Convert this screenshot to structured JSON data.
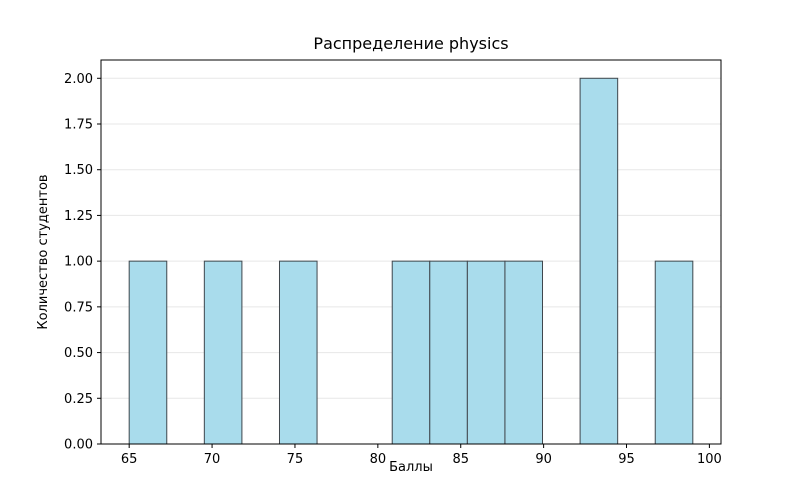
{
  "figure": {
    "title": "Распределение physics",
    "xlabel": "Баллы",
    "ylabel": "Количество студентов"
  },
  "chart_data": {
    "type": "bar",
    "subtype": "histogram",
    "title": "Распределение physics",
    "xlabel": "Баллы",
    "ylabel": "Количество студентов",
    "bin_edges": [
      65.0,
      67.267,
      69.533,
      71.8,
      74.067,
      76.333,
      78.6,
      80.867,
      83.133,
      85.4,
      87.667,
      89.933,
      92.2,
      94.467,
      96.733,
      99.0
    ],
    "counts": [
      1,
      0,
      1,
      0,
      1,
      0,
      0,
      1,
      1,
      1,
      1,
      0,
      2,
      0,
      1
    ],
    "total_students": 10,
    "xlim": [
      63.3,
      100.7
    ],
    "ylim": [
      0,
      2.1
    ],
    "xticks": [
      65,
      70,
      75,
      80,
      85,
      90,
      95,
      100
    ],
    "xtick_labels": [
      "65",
      "70",
      "75",
      "80",
      "85",
      "90",
      "95",
      "100"
    ],
    "yticks": [
      0,
      0.25,
      0.5,
      0.75,
      1.0,
      1.25,
      1.5,
      1.75,
      2.0
    ],
    "ytick_labels": [
      "0.00",
      "0.25",
      "0.50",
      "0.75",
      "1.00",
      "1.25",
      "1.50",
      "1.75",
      "2.00"
    ],
    "grid": "horizontal",
    "legend": "none",
    "colors": {
      "bar_fill": "#a9dcec",
      "bar_edge": "#3f464c",
      "gridline": "#e7e7e7",
      "spine": "#000000",
      "tick": "#000000",
      "background": "#ffffff"
    }
  }
}
